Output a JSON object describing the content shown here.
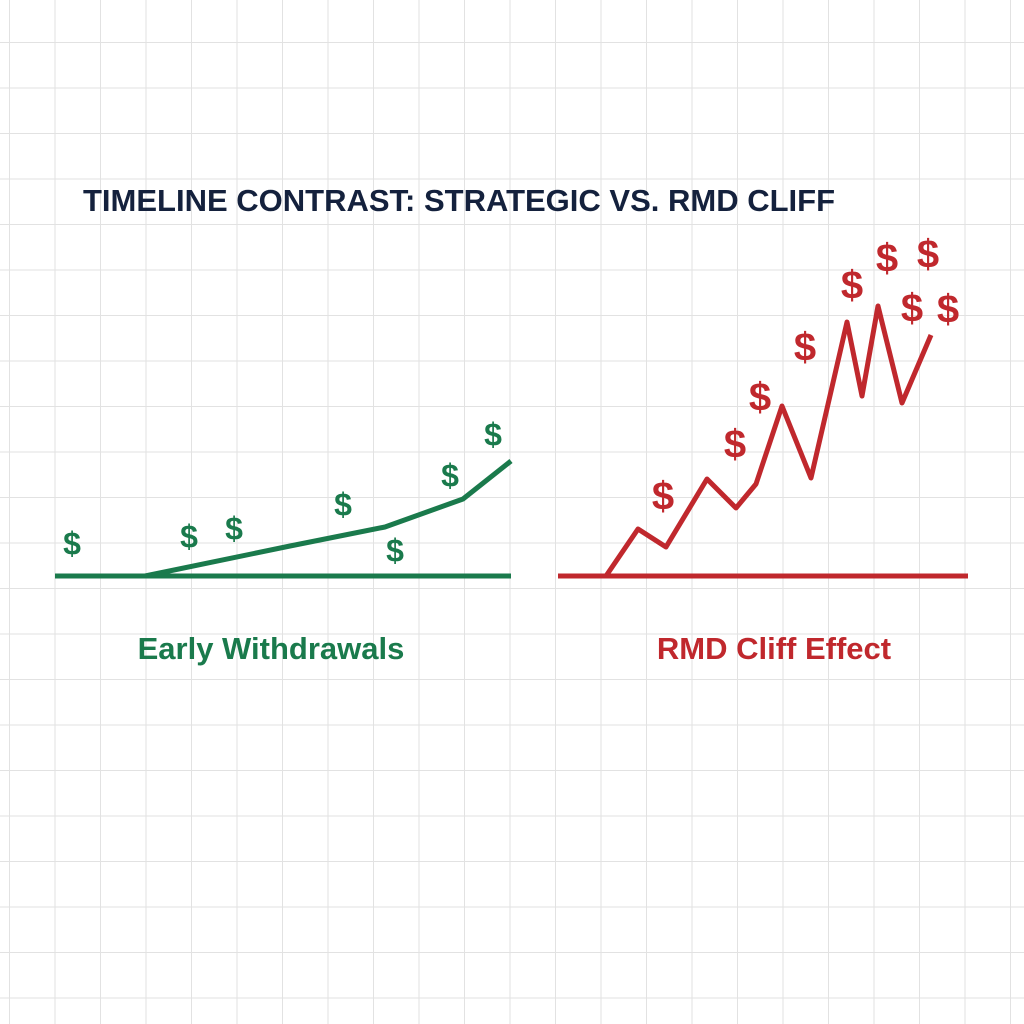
{
  "title": "TIMELINE CONTRAST: STRATEGIC VS. RMD CLIFF",
  "panels": [
    {
      "label": "Early Withdrawals",
      "symbol": "$"
    },
    {
      "label": "RMD Cliff Effect",
      "symbol": "$"
    }
  ]
}
